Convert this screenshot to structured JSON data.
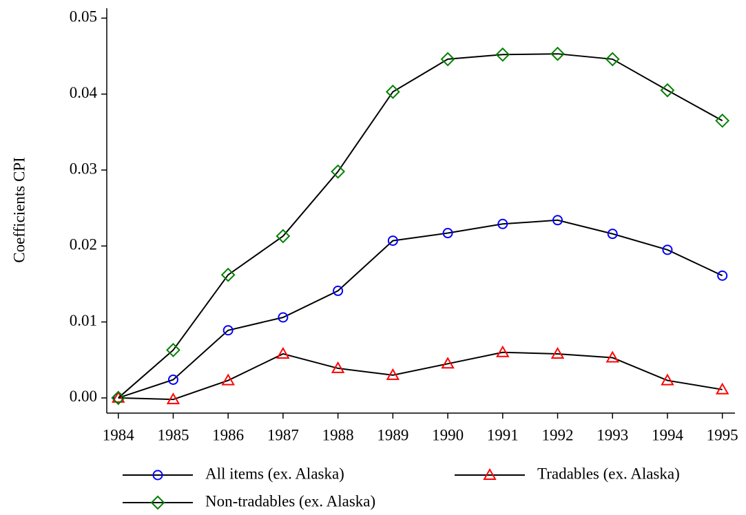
{
  "chart_data": {
    "type": "line",
    "y_label": "Coefficients CPI",
    "x": [
      1984,
      1985,
      1986,
      1987,
      1988,
      1989,
      1990,
      1991,
      1992,
      1993,
      1994,
      1995
    ],
    "xlim": [
      1983.79,
      1995.23
    ],
    "xticks": [
      1984,
      1985,
      1986,
      1987,
      1988,
      1989,
      1990,
      1991,
      1992,
      1993,
      1994,
      1995
    ],
    "ylim": [
      -0.002,
      0.0513
    ],
    "yticks": [
      {
        "value": 0,
        "label": "0.00"
      },
      0.01,
      0.02,
      0.03,
      0.04,
      0.05
    ],
    "line_color": "#000000",
    "series": [
      {
        "name": "All items (ex. Alaska)",
        "color": "#0000ff",
        "marker": "circle",
        "values": [
          0,
          0.0024,
          0.0089,
          0.0106,
          0.0141,
          0.0207,
          0.0217,
          0.0229,
          0.0234,
          0.0216,
          0.0195,
          0.0161
        ]
      },
      {
        "name": "Tradables (ex. Alaska)",
        "color": "#ff0000",
        "marker": "triangle",
        "values": [
          0,
          -0.0002,
          0.0023,
          0.0058,
          0.0039,
          0.003,
          0.0045,
          0.006,
          0.0058,
          0.0053,
          0.0023,
          0.0011
        ]
      },
      {
        "name": "Non-tradables (ex. Alaska)",
        "color": "#008000",
        "marker": "diamond",
        "values": [
          0,
          0.0063,
          0.0162,
          0.0213,
          0.0298,
          0.0403,
          0.0446,
          0.0452,
          0.0453,
          0.0446,
          0.0405,
          0.0365
        ]
      }
    ]
  }
}
